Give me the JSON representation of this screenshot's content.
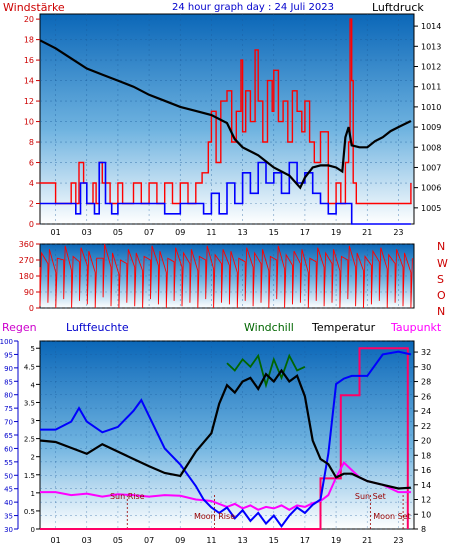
{
  "header": {
    "left_label": "Windstärke",
    "title": "24 hour graph day : 24 Juli 2023",
    "right_label": "Luftdruck"
  },
  "middle": {
    "directions": [
      "N",
      "W",
      "S",
      "O",
      "N"
    ]
  },
  "bottom_labels": {
    "rain": "Regen",
    "humidity": "Luftfeuchte",
    "windchill": "Windchill",
    "temperature": "Temperatur",
    "dewpoint": "Taupunkt"
  },
  "event_labels": {
    "sunrise": "Sun Rise",
    "sunset": "Sun Set",
    "moonrise": "Moon Rise",
    "moonset": "Moon Set"
  },
  "colors": {
    "wind_gust": "#ff0000",
    "wind_avg": "#0000ff",
    "pressure": "#000000",
    "direction": "#ff0000",
    "humidity": "#0000ff",
    "temperature": "#000000",
    "windchill": "#006600",
    "dewpoint": "#ff00ff",
    "rain": "#ff0066",
    "label_rain": "#cc00cc",
    "label_humidity": "#0000cc",
    "label_windchill": "#006600",
    "label_dewpoint": "#ff00ff",
    "label_header_left": "#cc0000",
    "label_header_title": "#0000cc",
    "axis_red": "#cc0000",
    "axis_blue": "#0000cc",
    "event_text": "#990000"
  },
  "chart_data": [
    {
      "type": "line",
      "title": "24 hour graph day : 24 Juli 2023",
      "x_ticks": [
        "01",
        "03",
        "05",
        "07",
        "09",
        "11",
        "13",
        "15",
        "17",
        "19",
        "21",
        "23"
      ],
      "left_axis": {
        "label": "Windstärke",
        "ticks": [
          0,
          2,
          4,
          6,
          8,
          10,
          12,
          14,
          16,
          18,
          20
        ],
        "ylim": [
          0,
          20.5
        ]
      },
      "right_axis": {
        "label": "Luftdruck",
        "ticks": [
          1005,
          1006,
          1007,
          1008,
          1009,
          1010,
          1011,
          1012,
          1013,
          1014
        ],
        "ylim": [
          1004.2,
          1014.6
        ]
      },
      "series": [
        {
          "name": "Windstärke",
          "hours": [
            0,
            0.9,
            1.0,
            1.9,
            2.0,
            2.3,
            2.5,
            2.8,
            3.0,
            3.2,
            3.4,
            3.6,
            3.8,
            4.0,
            4.5,
            5.0,
            5.3,
            5.5,
            6.0,
            6.5,
            7.0,
            7.5,
            8.0,
            8.5,
            9.0,
            9.5,
            10.0,
            10.4,
            10.8,
            11.0,
            11.3,
            11.6,
            12.0,
            12.3,
            12.6,
            12.9,
            13.0,
            13.2,
            13.5,
            13.8,
            14.0,
            14.3,
            14.6,
            14.9,
            15.0,
            15.3,
            15.6,
            15.9,
            16.2,
            16.5,
            16.8,
            17.0,
            17.3,
            17.6,
            18.0,
            18.5,
            19.0,
            19.3,
            19.6,
            19.8,
            19.9,
            20.0,
            20.1,
            20.3,
            20.6,
            21.0,
            22.0,
            23.0,
            23.6,
            23.8
          ],
          "values": [
            4,
            4,
            2,
            2,
            4,
            2,
            6,
            4,
            2,
            2,
            4,
            2,
            6,
            4,
            2,
            4,
            2,
            2,
            4,
            2,
            4,
            2,
            4,
            2,
            4,
            2,
            4,
            5,
            8,
            11,
            6,
            12,
            13,
            8,
            11,
            16,
            9,
            13,
            10,
            17,
            12,
            8,
            14,
            11,
            15,
            10,
            12,
            8,
            13,
            11,
            9,
            12,
            8,
            6,
            9,
            2,
            4,
            2,
            6,
            8,
            20,
            14,
            4,
            2,
            2,
            2,
            2,
            2,
            2,
            4
          ]
        },
        {
          "name": "Windstärke (avg)",
          "hours": [
            0,
            1,
            2,
            2.3,
            2.6,
            3.0,
            3.5,
            3.8,
            4.2,
            4.6,
            5,
            6,
            7,
            8,
            9,
            10,
            10.5,
            11,
            11.5,
            12,
            12.5,
            13,
            13.5,
            14,
            14.5,
            15,
            15.5,
            16,
            16.5,
            17,
            17.5,
            18,
            18.5,
            19,
            19.5,
            20,
            21,
            22,
            23,
            23.8
          ],
          "values": [
            2,
            2,
            2,
            1,
            4,
            2,
            1,
            6,
            2,
            1,
            2,
            2,
            2,
            1,
            2,
            2,
            1,
            3,
            1,
            4,
            2,
            5,
            3,
            6,
            4,
            5,
            3,
            6,
            4,
            5,
            3,
            2,
            1,
            2,
            2,
            0,
            0,
            0,
            0,
            0
          ]
        },
        {
          "name": "Luftdruck",
          "hours": [
            0,
            1,
            2,
            3,
            4,
            5,
            6,
            7,
            8,
            9,
            10,
            11,
            12,
            12.5,
            13,
            14,
            15,
            16,
            16.7,
            17,
            17.5,
            18,
            18.5,
            19,
            19.4,
            19.6,
            19.8,
            20,
            20.5,
            21,
            21.5,
            22,
            22.5,
            23,
            23.8
          ],
          "values": [
            1013.3,
            1012.9,
            1012.4,
            1011.9,
            1011.6,
            1011.3,
            1011.0,
            1010.6,
            1010.3,
            1010.0,
            1009.8,
            1009.6,
            1009.2,
            1008.4,
            1008.0,
            1007.6,
            1007.0,
            1006.6,
            1006.0,
            1006.5,
            1007.0,
            1007.1,
            1007.1,
            1007.0,
            1006.8,
            1008.5,
            1009.0,
            1008.1,
            1008.0,
            1008.0,
            1008.3,
            1008.5,
            1008.8,
            1009.0,
            1009.3
          ]
        }
      ]
    },
    {
      "type": "line",
      "x_ticks": [
        "01",
        "03",
        "05",
        "07",
        "09",
        "11",
        "13",
        "15",
        "17",
        "19",
        "21",
        "23"
      ],
      "left_axis": {
        "ticks": [
          0,
          90,
          180,
          270,
          360
        ],
        "ylim": [
          0,
          360
        ]
      },
      "right_labels": [
        "N",
        "W",
        "S",
        "O",
        "N"
      ],
      "series": [
        {
          "name": "Windrichtung",
          "values": [
            230,
            250,
            200,
            270,
            210,
            260,
            240,
            200,
            280,
            230,
            190,
            250,
            230,
            210,
            270,
            240,
            200,
            260,
            230,
            250,
            210,
            270,
            220,
            250,
            240,
            200,
            260,
            230,
            250,
            210,
            270,
            220,
            240,
            250,
            200,
            260,
            230,
            250,
            210,
            270,
            230,
            210,
            240,
            260,
            220,
            250,
            230,
            200
          ]
        }
      ]
    },
    {
      "type": "line",
      "x_ticks": [
        "01",
        "03",
        "05",
        "07",
        "09",
        "11",
        "13",
        "15",
        "17",
        "19",
        "21",
        "23"
      ],
      "left_axis": {
        "label": "Luftfeuchte",
        "ticks": [
          30,
          35,
          40,
          45,
          50,
          55,
          60,
          65,
          70,
          75,
          80,
          85,
          90,
          95,
          100
        ],
        "ylim": [
          30,
          100
        ]
      },
      "rain_axis": {
        "label": "Regen",
        "ticks": [
          0,
          0.5,
          1,
          1.5,
          2,
          2.5,
          3,
          3.5,
          4,
          4.5,
          5
        ],
        "ylim": [
          0,
          5.2
        ]
      },
      "right_axis": {
        "label": "Temperatur",
        "ticks": [
          8,
          10,
          12,
          14,
          16,
          18,
          20,
          22,
          24,
          26,
          28,
          30,
          32
        ],
        "ylim": [
          8,
          33.5
        ]
      },
      "series": [
        {
          "name": "Luftfeuchte",
          "hours": [
            0,
            1,
            2,
            2.5,
            3,
            4,
            5,
            6,
            6.5,
            7,
            7.5,
            8,
            9,
            10,
            10.5,
            11,
            11.5,
            12,
            12.5,
            13,
            13.5,
            14,
            14.5,
            15,
            15.5,
            16,
            16.5,
            17,
            17.5,
            18,
            18.5,
            19,
            19.5,
            20,
            21,
            22,
            23,
            23.8
          ],
          "values": [
            67,
            67,
            70,
            75,
            70,
            66,
            68,
            74,
            78,
            72,
            66,
            60,
            54,
            46,
            41,
            38,
            36,
            38,
            34,
            37,
            33,
            36,
            32,
            35,
            31,
            35,
            38,
            36,
            39,
            41,
            58,
            84,
            86,
            87,
            87,
            95,
            96,
            95
          ]
        },
        {
          "name": "Temperatur",
          "hours": [
            0,
            1,
            2,
            3,
            4,
            5,
            6,
            7,
            8,
            9,
            10,
            11,
            11.5,
            12,
            12.5,
            13,
            13.5,
            14,
            14.5,
            15,
            15.5,
            16,
            16.5,
            17,
            17.5,
            18,
            18.5,
            19,
            19.5,
            20,
            21,
            22,
            23,
            23.8
          ],
          "values": [
            20.0,
            19.8,
            19.0,
            18.2,
            19.5,
            18.5,
            17.5,
            16.5,
            15.6,
            15.2,
            18.5,
            21.0,
            25.0,
            27.5,
            26.5,
            28.0,
            28.5,
            27.0,
            29.0,
            28.0,
            29.5,
            28.0,
            28.8,
            26.0,
            20.0,
            17.5,
            16.8,
            15.0,
            15.5,
            15.5,
            14.5,
            14.0,
            13.5,
            13.6
          ]
        },
        {
          "name": "Windchill",
          "hours": [
            12,
            12.5,
            13,
            13.5,
            14,
            14.5,
            15,
            15.5,
            16,
            16.5,
            17
          ],
          "values": [
            30.5,
            29.5,
            31.0,
            30.0,
            31.5,
            27.5,
            31.0,
            28.5,
            31.5,
            29.5,
            30.0
          ]
        },
        {
          "name": "Taupunkt",
          "hours": [
            0,
            1,
            2,
            3,
            4,
            5,
            6,
            7,
            8,
            9,
            10,
            11,
            12,
            12.5,
            13,
            13.5,
            14,
            14.5,
            15,
            15.5,
            16,
            16.5,
            17,
            17.5,
            18,
            18.5,
            19,
            19.5,
            20,
            20.5,
            21,
            22,
            23,
            23.8
          ],
          "values": [
            13.0,
            13.0,
            12.6,
            12.8,
            12.4,
            12.7,
            12.6,
            12.4,
            12.6,
            12.5,
            12.0,
            11.8,
            11.0,
            11.4,
            10.8,
            11.2,
            10.6,
            11.0,
            10.8,
            11.2,
            10.6,
            11.2,
            11.0,
            11.5,
            11.8,
            12.6,
            15.0,
            17.0,
            16.0,
            15.0,
            14.5,
            14.0,
            13.0,
            13.0
          ]
        },
        {
          "name": "Regen",
          "hours": [
            0,
            18.0,
            18.0,
            19.3,
            19.3,
            20.5,
            20.5,
            23.6,
            23.6
          ],
          "values": [
            0,
            0,
            1.4,
            1.4,
            3.7,
            3.7,
            5.0,
            5.0,
            0
          ]
        }
      ],
      "events": [
        {
          "label": "Sun Rise",
          "hour": 5.6
        },
        {
          "label": "Moon Rise",
          "hour": 11.2
        },
        {
          "label": "Sun Set",
          "hour": 21.2
        },
        {
          "label": "Moon Set",
          "hour": 23.3
        }
      ]
    }
  ]
}
